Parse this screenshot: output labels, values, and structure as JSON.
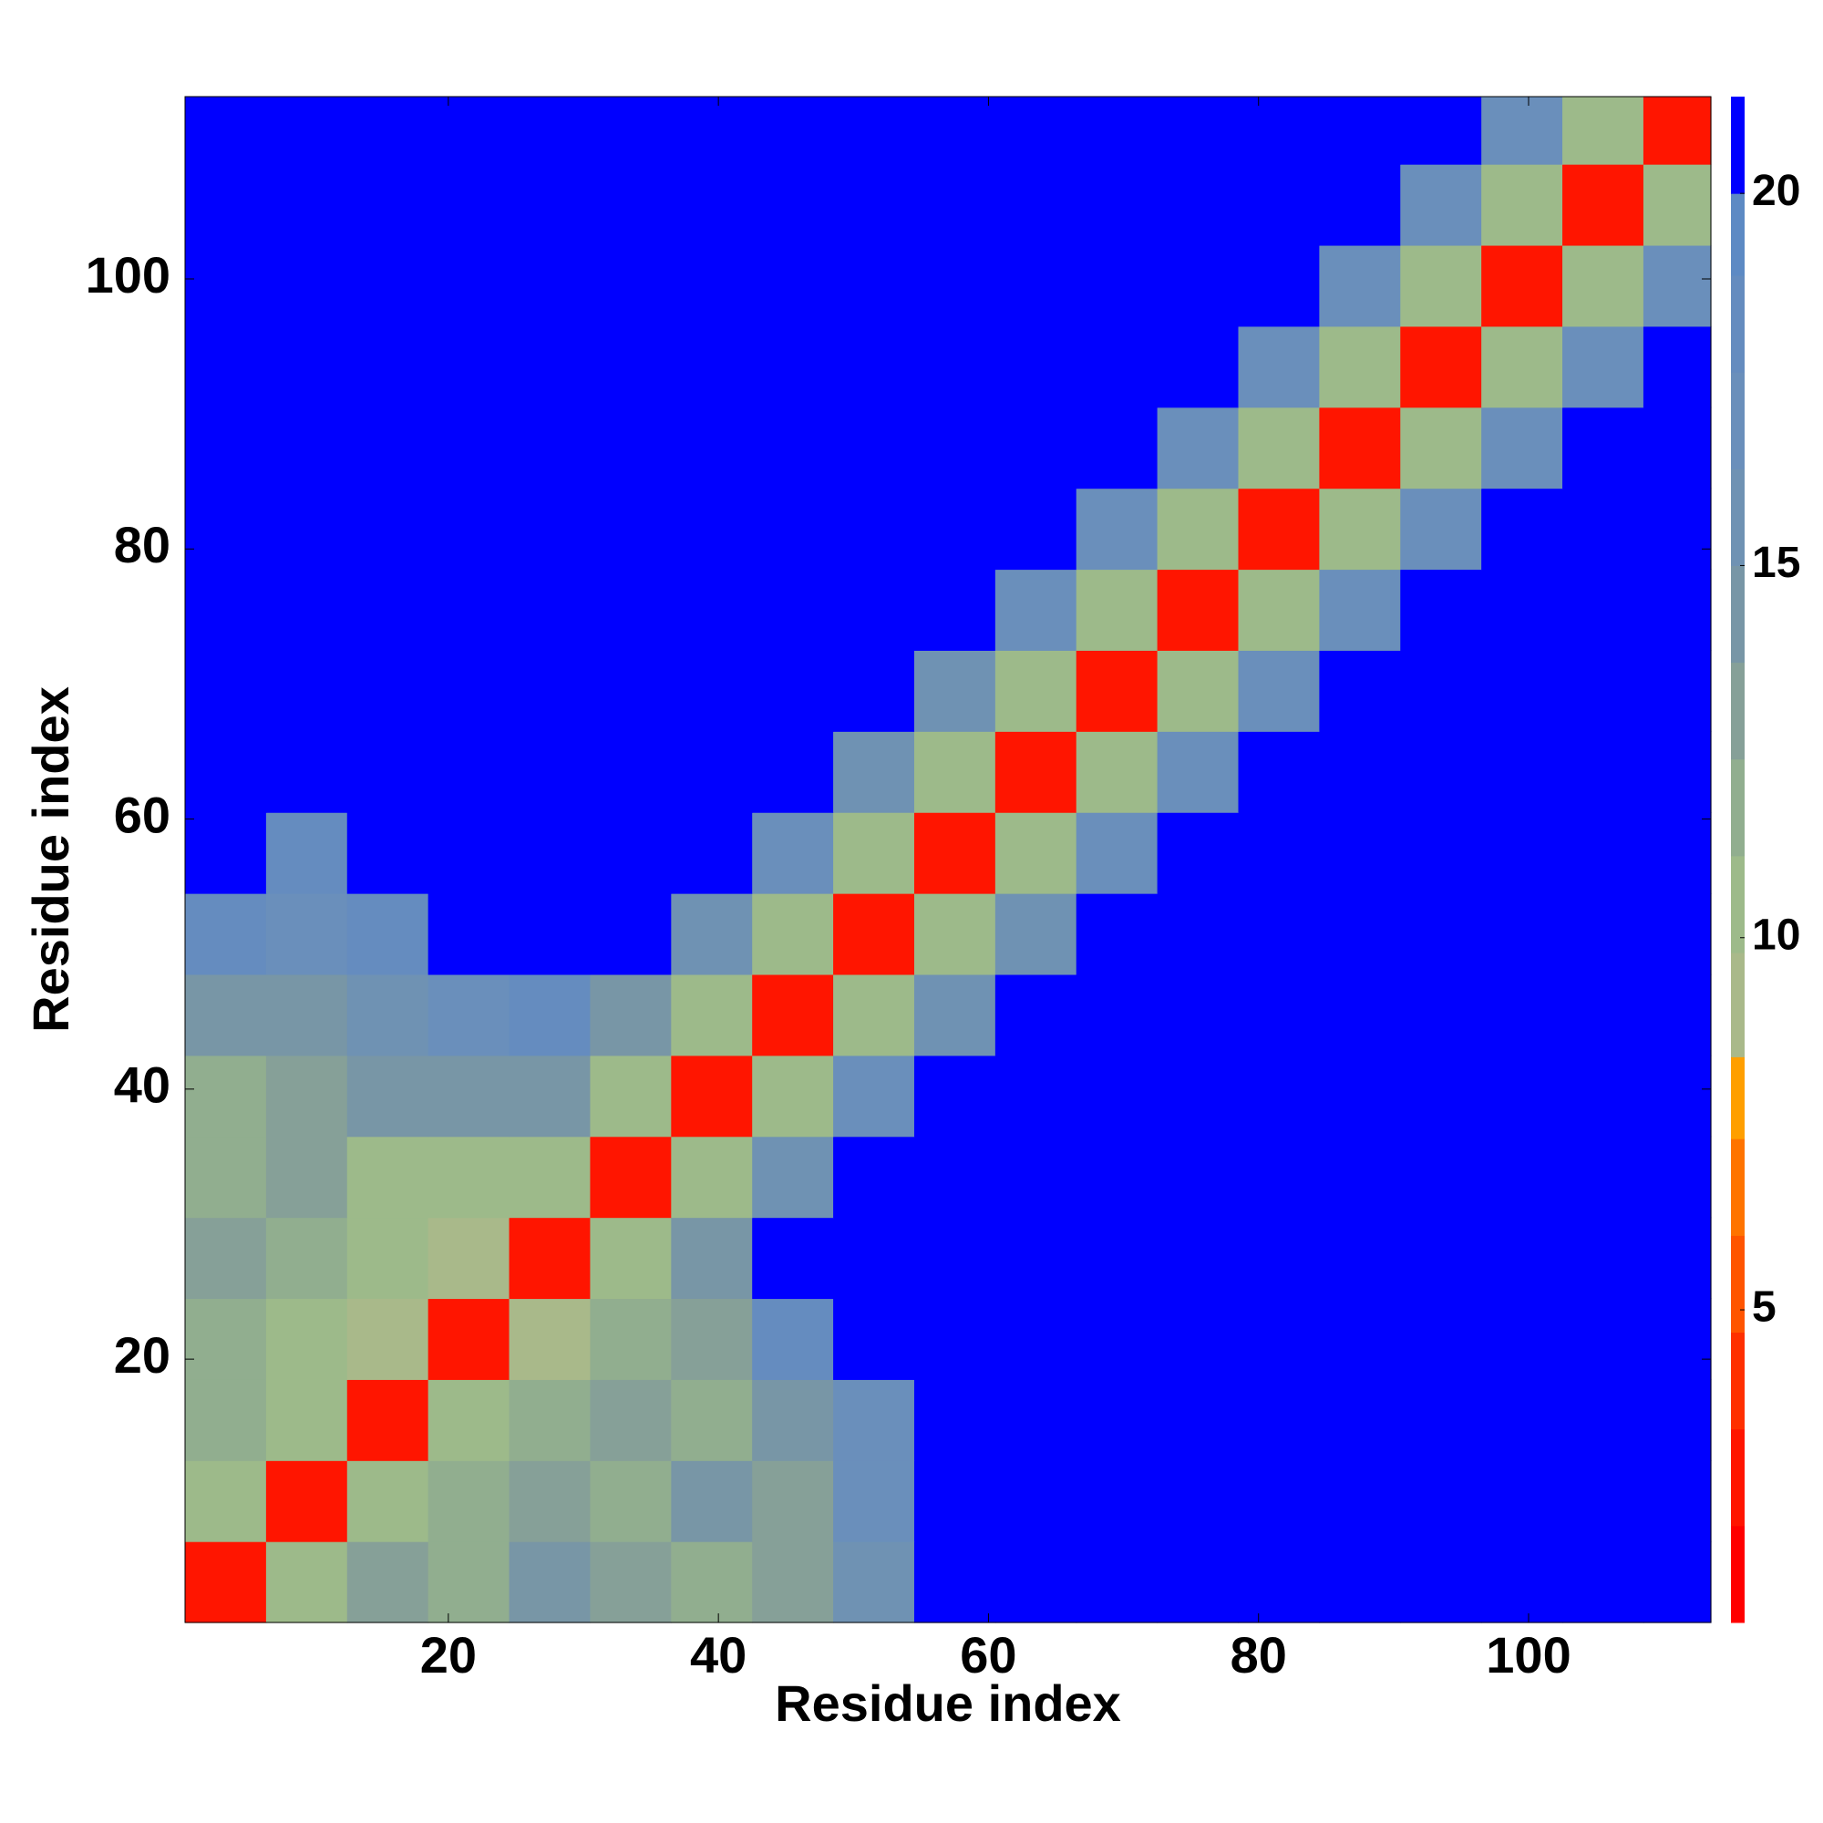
{
  "chart_data": {
    "type": "heatmap",
    "xlabel": "Residue index",
    "ylabel": "Residue index",
    "xlim": [
      0.5,
      113.5
    ],
    "ylim": [
      0.5,
      113.5
    ],
    "xticks": [
      20,
      40,
      60,
      80,
      100
    ],
    "yticks": [
      20,
      40,
      60,
      80,
      100
    ],
    "xbins": [
      0.5,
      6.5,
      12.5,
      18.5,
      24.5,
      30.5,
      36.5,
      42.5,
      48.5,
      54.5,
      60.5,
      66.5,
      72.5,
      78.5,
      84.5,
      90.5,
      96.5,
      102.5,
      108.5,
      113.5
    ],
    "ybins": [
      0.5,
      6.5,
      12.5,
      18.5,
      24.5,
      30.5,
      36.5,
      42.5,
      48.5,
      54.5,
      60.5,
      66.5,
      72.5,
      78.5,
      84.5,
      90.5,
      96.5,
      102.5,
      108.5,
      113.5
    ],
    "z": [
      [
        3,
        10,
        13,
        12,
        14,
        13,
        12,
        13,
        16,
        21.3,
        21.3,
        21.3,
        21.3,
        21.3,
        21.3,
        21.3,
        21.3,
        21.3,
        21.3
      ],
      [
        10,
        3,
        10,
        12,
        13,
        12,
        14,
        13,
        17,
        21.3,
        21.3,
        21.3,
        21.3,
        21.3,
        21.3,
        21.3,
        21.3,
        21.3,
        21.3
      ],
      [
        12,
        10,
        3,
        10,
        12,
        13,
        12,
        14,
        17,
        21.3,
        21.3,
        21.3,
        21.3,
        21.3,
        21.3,
        21.3,
        21.3,
        21.3,
        21.3
      ],
      [
        12,
        11,
        9,
        3,
        9,
        12,
        13,
        18,
        21.3,
        21.3,
        21.3,
        21.3,
        21.3,
        21.3,
        21.3,
        21.3,
        21.3,
        21.3,
        21.3
      ],
      [
        13,
        12,
        11,
        9,
        3,
        10,
        15,
        21.3,
        21.3,
        21.3,
        21.3,
        21.3,
        21.3,
        21.3,
        21.3,
        21.3,
        21.3,
        21.3,
        21.3
      ],
      [
        12,
        13,
        11,
        11,
        10,
        3,
        10,
        16,
        21.3,
        21.3,
        21.3,
        21.3,
        21.3,
        21.3,
        21.3,
        21.3,
        21.3,
        21.3,
        21.3
      ],
      [
        12,
        13,
        14,
        15,
        14,
        10,
        3,
        10,
        17,
        21.3,
        21.3,
        21.3,
        21.3,
        21.3,
        21.3,
        21.3,
        21.3,
        21.3,
        21.3
      ],
      [
        14,
        15,
        16,
        17,
        18,
        15,
        10,
        3,
        10,
        16,
        21.3,
        21.3,
        21.3,
        21.3,
        21.3,
        21.3,
        21.3,
        21.3,
        21.3
      ],
      [
        18,
        17,
        18,
        21.3,
        21.3,
        21.3,
        16,
        10,
        3,
        10,
        16,
        21.3,
        21.3,
        21.3,
        21.3,
        21.3,
        21.3,
        21.3,
        21.3
      ],
      [
        21.3,
        18,
        21.3,
        21.3,
        21.3,
        21.3,
        21.3,
        17,
        10,
        3,
        10,
        17,
        21.3,
        21.3,
        21.3,
        21.3,
        21.3,
        21.3,
        21.3
      ],
      [
        21.3,
        21.3,
        21.3,
        21.3,
        21.3,
        21.3,
        21.3,
        21.3,
        16,
        10,
        3,
        10,
        17,
        21.3,
        21.3,
        21.3,
        21.3,
        21.3,
        21.3
      ],
      [
        21.3,
        21.3,
        21.3,
        21.3,
        21.3,
        21.3,
        21.3,
        21.3,
        21.3,
        16,
        10,
        3,
        10,
        17,
        21.3,
        21.3,
        21.3,
        21.3,
        21.3
      ],
      [
        21.3,
        21.3,
        21.3,
        21.3,
        21.3,
        21.3,
        21.3,
        21.3,
        21.3,
        21.3,
        17,
        10,
        3,
        10,
        17,
        21.3,
        21.3,
        21.3,
        21.3
      ],
      [
        21.3,
        21.3,
        21.3,
        21.3,
        21.3,
        21.3,
        21.3,
        21.3,
        21.3,
        21.3,
        21.3,
        17,
        10,
        3,
        10,
        17,
        21.3,
        21.3,
        21.3
      ],
      [
        21.3,
        21.3,
        21.3,
        21.3,
        21.3,
        21.3,
        21.3,
        21.3,
        21.3,
        21.3,
        21.3,
        21.3,
        17,
        10,
        3,
        10,
        17,
        21.3,
        21.3
      ],
      [
        21.3,
        21.3,
        21.3,
        21.3,
        21.3,
        21.3,
        21.3,
        21.3,
        21.3,
        21.3,
        21.3,
        21.3,
        21.3,
        17,
        10,
        3,
        10,
        17,
        21.3
      ],
      [
        21.3,
        21.3,
        21.3,
        21.3,
        21.3,
        21.3,
        21.3,
        21.3,
        21.3,
        21.3,
        21.3,
        21.3,
        21.3,
        21.3,
        17,
        10,
        3,
        10,
        17
      ],
      [
        21.3,
        21.3,
        21.3,
        21.3,
        21.3,
        21.3,
        21.3,
        21.3,
        21.3,
        21.3,
        21.3,
        21.3,
        21.3,
        21.3,
        21.3,
        17,
        10,
        3,
        10
      ],
      [
        21.3,
        21.3,
        21.3,
        21.3,
        21.3,
        21.3,
        21.3,
        21.3,
        21.3,
        21.3,
        21.3,
        21.3,
        21.3,
        21.3,
        21.3,
        21.3,
        17,
        10,
        3
      ]
    ],
    "clim": [
      0.8,
      21.3
    ],
    "cticks": [
      5,
      10,
      15,
      20
    ],
    "levels": [
      0.8,
      2.1,
      3.4,
      4.7,
      6.0,
      7.3,
      8.4,
      9.8,
      11.1,
      12.4,
      13.7,
      15.0,
      16.3,
      17.6,
      18.9,
      20.0,
      21.3
    ],
    "colors": [
      "#ff0000",
      "#ff1500",
      "#ff3000",
      "#ff5500",
      "#ff7400",
      "#ff9f00",
      "#a9b98a",
      "#9dba8a",
      "#91ae8f",
      "#86a098",
      "#7896a6",
      "#6f92b3",
      "#6a8fbb",
      "#658cbf",
      "#5d8ac4",
      "#0000ff"
    ],
    "grid": false
  }
}
